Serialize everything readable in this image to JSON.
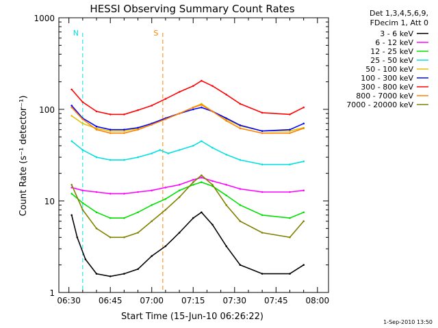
{
  "chart_data": {
    "type": "line",
    "title": "HESSI Observing Summary Count Rates",
    "xlabel": "Start Time (15-Jun-10 06:26:22)",
    "ylabel": "Count Rate (s⁻¹ detector⁻¹)",
    "yscale": "log",
    "ylim": [
      1,
      1000
    ],
    "xlim": [
      "06:26:22",
      "08:04:00"
    ],
    "x_tick_labels": [
      "06:30",
      "06:45",
      "07:00",
      "07:15",
      "07:30",
      "07:45",
      "08:00"
    ],
    "y_tick_labels": [
      "1",
      "10",
      "100",
      "1000"
    ],
    "legend_header": [
      "Det 1,3,4,5,6,9,",
      "FDecim 1, Att 0"
    ],
    "legend_placement": "right, outside plot",
    "timestamp": "1-Sep-2010 13:50",
    "annotations": [
      {
        "label": "N",
        "time": "06:35",
        "color": "#00e0e0"
      },
      {
        "label": "S",
        "time": "07:04",
        "color": "#ff8000"
      }
    ],
    "series": [
      {
        "name": "3 - 6 keV",
        "color": "#000000",
        "values": [
          [
            "06:31",
            7
          ],
          [
            "06:33",
            4
          ],
          [
            "06:36",
            2.3
          ],
          [
            "06:40",
            1.6
          ],
          [
            "06:45",
            1.5
          ],
          [
            "06:50",
            1.6
          ],
          [
            "06:55",
            1.8
          ],
          [
            "07:00",
            2.5
          ],
          [
            "07:05",
            3.2
          ],
          [
            "07:10",
            4.5
          ],
          [
            "07:15",
            6.5
          ],
          [
            "07:18",
            7.5
          ],
          [
            "07:22",
            5.5
          ],
          [
            "07:27",
            3.2
          ],
          [
            "07:32",
            2.0
          ],
          [
            "07:40",
            1.6
          ],
          [
            "07:50",
            1.6
          ],
          [
            "07:55",
            2.0
          ]
        ]
      },
      {
        "name": "6 - 12 keV",
        "color": "#ff00ff",
        "values": [
          [
            "06:31",
            14
          ],
          [
            "06:35",
            13
          ],
          [
            "06:40",
            12.5
          ],
          [
            "06:45",
            12
          ],
          [
            "06:50",
            12
          ],
          [
            "06:55",
            12.5
          ],
          [
            "07:00",
            13
          ],
          [
            "07:05",
            14
          ],
          [
            "07:10",
            15
          ],
          [
            "07:15",
            17
          ],
          [
            "07:18",
            18
          ],
          [
            "07:22",
            16.5
          ],
          [
            "07:27",
            15
          ],
          [
            "07:32",
            13.5
          ],
          [
            "07:40",
            12.5
          ],
          [
            "07:50",
            12.5
          ],
          [
            "07:55",
            13
          ]
        ]
      },
      {
        "name": "12 - 25 keV",
        "color": "#00e000",
        "values": [
          [
            "06:31",
            12
          ],
          [
            "06:35",
            9.5
          ],
          [
            "06:40",
            7.5
          ],
          [
            "06:45",
            6.5
          ],
          [
            "06:50",
            6.5
          ],
          [
            "06:55",
            7.5
          ],
          [
            "07:00",
            9
          ],
          [
            "07:05",
            10.5
          ],
          [
            "07:10",
            13
          ],
          [
            "07:15",
            15
          ],
          [
            "07:18",
            16
          ],
          [
            "07:22",
            14.5
          ],
          [
            "07:27",
            11.5
          ],
          [
            "07:32",
            9
          ],
          [
            "07:40",
            7
          ],
          [
            "07:50",
            6.5
          ],
          [
            "07:55",
            7.5
          ]
        ]
      },
      {
        "name": "25 - 50 keV",
        "color": "#00e0e0",
        "values": [
          [
            "06:31",
            45
          ],
          [
            "06:35",
            36
          ],
          [
            "06:40",
            30
          ],
          [
            "06:45",
            28
          ],
          [
            "06:50",
            28
          ],
          [
            "06:55",
            30
          ],
          [
            "07:00",
            33
          ],
          [
            "07:03",
            36
          ],
          [
            "07:06",
            33
          ],
          [
            "07:10",
            36
          ],
          [
            "07:15",
            40
          ],
          [
            "07:18",
            45
          ],
          [
            "07:22",
            38
          ],
          [
            "07:27",
            32
          ],
          [
            "07:32",
            28
          ],
          [
            "07:40",
            25
          ],
          [
            "07:50",
            25
          ],
          [
            "07:55",
            27
          ]
        ]
      },
      {
        "name": "50 - 100 keV",
        "color": "#e0c000",
        "values": [
          [
            "06:31",
            85
          ],
          [
            "06:35",
            70
          ],
          [
            "06:40",
            62
          ],
          [
            "06:45",
            58
          ],
          [
            "06:50",
            58
          ],
          [
            "06:55",
            62
          ],
          [
            "07:00",
            70
          ],
          [
            "07:05",
            80
          ],
          [
            "07:10",
            90
          ],
          [
            "07:15",
            105
          ],
          [
            "07:18",
            115
          ],
          [
            "07:22",
            95
          ],
          [
            "07:27",
            78
          ],
          [
            "07:32",
            66
          ],
          [
            "07:40",
            58
          ],
          [
            "07:50",
            58
          ],
          [
            "07:55",
            63
          ]
        ]
      },
      {
        "name": "100 - 300 keV",
        "color": "#0000ff",
        "values": [
          [
            "06:31",
            110
          ],
          [
            "06:35",
            80
          ],
          [
            "06:40",
            65
          ],
          [
            "06:45",
            60
          ],
          [
            "06:50",
            60
          ],
          [
            "06:55",
            63
          ],
          [
            "07:00",
            70
          ],
          [
            "07:05",
            80
          ],
          [
            "07:10",
            90
          ],
          [
            "07:15",
            100
          ],
          [
            "07:18",
            105
          ],
          [
            "07:22",
            95
          ],
          [
            "07:27",
            80
          ],
          [
            "07:32",
            67
          ],
          [
            "07:40",
            58
          ],
          [
            "07:50",
            60
          ],
          [
            "07:55",
            70
          ]
        ]
      },
      {
        "name": "300 - 800 keV",
        "color": "#ff0000",
        "values": [
          [
            "06:31",
            165
          ],
          [
            "06:35",
            120
          ],
          [
            "06:40",
            95
          ],
          [
            "06:45",
            88
          ],
          [
            "06:50",
            88
          ],
          [
            "06:55",
            98
          ],
          [
            "07:00",
            110
          ],
          [
            "07:05",
            130
          ],
          [
            "07:10",
            155
          ],
          [
            "07:15",
            180
          ],
          [
            "07:18",
            205
          ],
          [
            "07:22",
            180
          ],
          [
            "07:27",
            145
          ],
          [
            "07:32",
            115
          ],
          [
            "07:40",
            92
          ],
          [
            "07:50",
            88
          ],
          [
            "07:55",
            105
          ]
        ]
      },
      {
        "name": "800 - 7000 keV",
        "color": "#ff8000",
        "values": [
          [
            "06:31",
            105
          ],
          [
            "06:35",
            78
          ],
          [
            "06:40",
            60
          ],
          [
            "06:45",
            55
          ],
          [
            "06:50",
            55
          ],
          [
            "06:55",
            60
          ],
          [
            "07:00",
            68
          ],
          [
            "07:05",
            78
          ],
          [
            "07:10",
            90
          ],
          [
            "07:15",
            105
          ],
          [
            "07:18",
            112
          ],
          [
            "07:22",
            95
          ],
          [
            "07:27",
            75
          ],
          [
            "07:32",
            62
          ],
          [
            "07:40",
            55
          ],
          [
            "07:50",
            55
          ],
          [
            "07:55",
            62
          ]
        ]
      },
      {
        "name": "7000 - 20000 keV",
        "color": "#808000",
        "values": [
          [
            "06:31",
            15
          ],
          [
            "06:35",
            8
          ],
          [
            "06:40",
            5
          ],
          [
            "06:45",
            4
          ],
          [
            "06:50",
            4
          ],
          [
            "06:55",
            4.5
          ],
          [
            "07:00",
            6
          ],
          [
            "07:05",
            8
          ],
          [
            "07:10",
            11
          ],
          [
            "07:15",
            16
          ],
          [
            "07:18",
            19
          ],
          [
            "07:22",
            15
          ],
          [
            "07:27",
            9
          ],
          [
            "07:32",
            6
          ],
          [
            "07:40",
            4.5
          ],
          [
            "07:50",
            4
          ],
          [
            "07:55",
            6
          ]
        ]
      }
    ]
  }
}
